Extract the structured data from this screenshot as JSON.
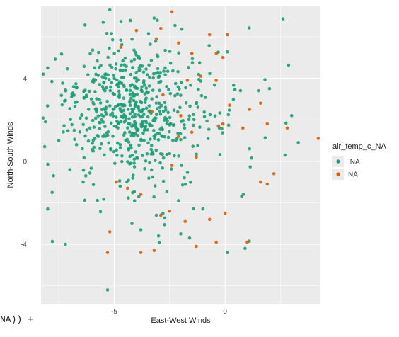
{
  "code_fragment": "NA)) +",
  "chart_data": {
    "type": "scatter",
    "title": "",
    "xlabel": "East-West Winds",
    "ylabel": "North-South Winds",
    "xlim": [
      -8.3,
      4.3
    ],
    "ylim": [
      -6.9,
      7.5
    ],
    "xticks": [
      -5,
      0
    ],
    "yticks": [
      -4,
      0,
      4
    ],
    "xtick_labels": [
      "-5",
      "0"
    ],
    "ytick_labels": [
      "-4",
      "0",
      "4"
    ],
    "grid": true,
    "legend_title": "air_temp_c_NA",
    "legend_position": "right",
    "colors": {
      "panel": "#ebebeb",
      "grid": "#ffffff",
      "NA_not": "#1b9e77",
      "NA": "#d95f02"
    },
    "series": [
      {
        "name": "!NA",
        "color": "#1b9e77",
        "generated": {
          "n": 620,
          "seed": 11,
          "clusters": [
            {
              "weight": 0.72,
              "mx": -4.2,
              "my": 2.6,
              "sx": 1.5,
              "sy": 1.5
            },
            {
              "weight": 0.28,
              "mx": -3.3,
              "my": 1.4,
              "sx": 2.4,
              "sy": 2.3
            }
          ]
        },
        "points": [
          [
            -5.2,
            7.3
          ],
          [
            -3.2,
            6.9
          ],
          [
            -5.5,
            6.7
          ],
          [
            -8.0,
            4.5
          ],
          [
            -8.2,
            4.2
          ],
          [
            -8.1,
            1.9
          ],
          [
            -7.5,
            1.0
          ],
          [
            -7.8,
            -1.5
          ],
          [
            -8.0,
            -2.3
          ],
          [
            -7.2,
            -4.0
          ],
          [
            -5.3,
            -6.2
          ],
          [
            -4.2,
            -3.0
          ],
          [
            -3.8,
            -3.3
          ],
          [
            -3.1,
            -2.6
          ],
          [
            -2.0,
            -3.5
          ],
          [
            -1.6,
            -3.7
          ],
          [
            -3.0,
            -3.6
          ],
          [
            0.1,
            -4.4
          ],
          [
            0.9,
            -4.2
          ],
          [
            1.1,
            0.6
          ],
          [
            2.7,
            0.3
          ],
          [
            3.0,
            2.2
          ],
          [
            3.3,
            0.9
          ],
          [
            1.5,
            3.4
          ],
          [
            2.0,
            3.5
          ],
          [
            -6.4,
            -1.0
          ],
          [
            -6.7,
            0.8
          ],
          [
            -7.0,
            -0.4
          ],
          [
            -2.1,
            -1.9
          ],
          [
            -1.0,
            -2.3
          ]
        ]
      },
      {
        "name": "NA",
        "color": "#d95f02",
        "points": [
          [
            -2.4,
            7.2
          ],
          [
            -4.0,
            6.3
          ],
          [
            -2.9,
            6.4
          ],
          [
            -3.1,
            5.9
          ],
          [
            -2.1,
            5.7
          ],
          [
            -1.5,
            5.2
          ],
          [
            -0.7,
            6.1
          ],
          [
            0.1,
            6.1
          ],
          [
            -0.4,
            5.2
          ],
          [
            -0.1,
            5.0
          ],
          [
            -4.7,
            5.5
          ],
          [
            -1.7,
            3.9
          ],
          [
            -1.1,
            4.1
          ],
          [
            -0.4,
            3.9
          ],
          [
            0.2,
            2.7
          ],
          [
            1.1,
            2.5
          ],
          [
            1.6,
            2.8
          ],
          [
            0.8,
            1.6
          ],
          [
            -0.1,
            1.8
          ],
          [
            -0.3,
            1.7
          ],
          [
            -1.5,
            1.4
          ],
          [
            -2.1,
            1.2
          ],
          [
            1.9,
            1.8
          ],
          [
            2.8,
            1.6
          ],
          [
            4.2,
            1.1
          ],
          [
            -1.3,
            0.2
          ],
          [
            -2.4,
            -0.2
          ],
          [
            -4.9,
            -1.0
          ],
          [
            -4.4,
            -1.3
          ],
          [
            -3.8,
            -1.6
          ],
          [
            -2.5,
            -2.4
          ],
          [
            -1.8,
            -2.9
          ],
          [
            -0.7,
            -2.8
          ],
          [
            0.0,
            -2.5
          ],
          [
            -2.9,
            -2.6
          ],
          [
            -5.2,
            -3.4
          ],
          [
            -3.8,
            -4.4
          ],
          [
            -3.2,
            -4.3
          ],
          [
            -1.3,
            -4.1
          ],
          [
            -0.4,
            -3.9
          ],
          [
            1.0,
            -3.9
          ],
          [
            -5.3,
            -4.4
          ],
          [
            1.6,
            -1.0
          ],
          [
            1.9,
            -1.1
          ],
          [
            2.2,
            -0.6
          ],
          [
            -3.3,
            2.4
          ],
          [
            -2.8,
            3.2
          ],
          [
            -2.0,
            2.2
          ]
        ]
      }
    ]
  }
}
